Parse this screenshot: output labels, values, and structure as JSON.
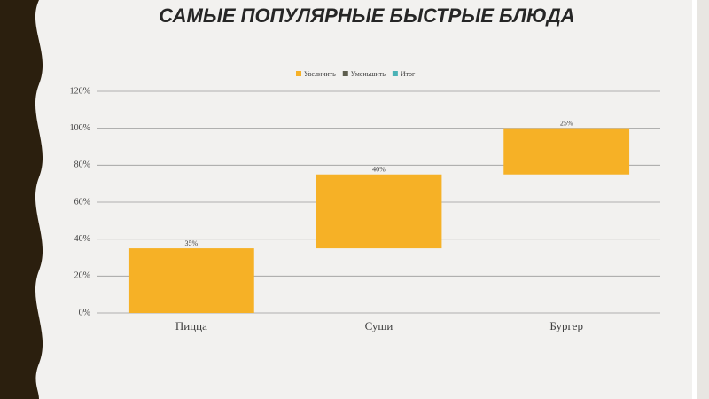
{
  "chart_data": {
    "type": "waterfall",
    "title": "САМЫЕ ПОПУЛЯРНЫЕ БЫСТРЫЕ БЛЮДА",
    "categories": [
      "Пицца",
      "Суши",
      "Бургер"
    ],
    "values": [
      35,
      40,
      25
    ],
    "value_labels": [
      "35%",
      "40%",
      "25%"
    ],
    "legend": [
      {
        "name": "Увеличить",
        "color": "#f6b126"
      },
      {
        "name": "Уменьшить",
        "color": "#5e5e4e"
      },
      {
        "name": "Итог",
        "color": "#4bb2b6"
      }
    ],
    "ylim": [
      0,
      120
    ],
    "yticks": [
      {
        "value": 0,
        "label": "0%"
      },
      {
        "value": 20,
        "label": "20%"
      },
      {
        "value": 40,
        "label": "40%"
      },
      {
        "value": 60,
        "label": "60%"
      },
      {
        "value": 80,
        "label": "80%"
      },
      {
        "value": 100,
        "label": "100%"
      },
      {
        "value": 120,
        "label": "120%"
      }
    ],
    "grid": true
  }
}
